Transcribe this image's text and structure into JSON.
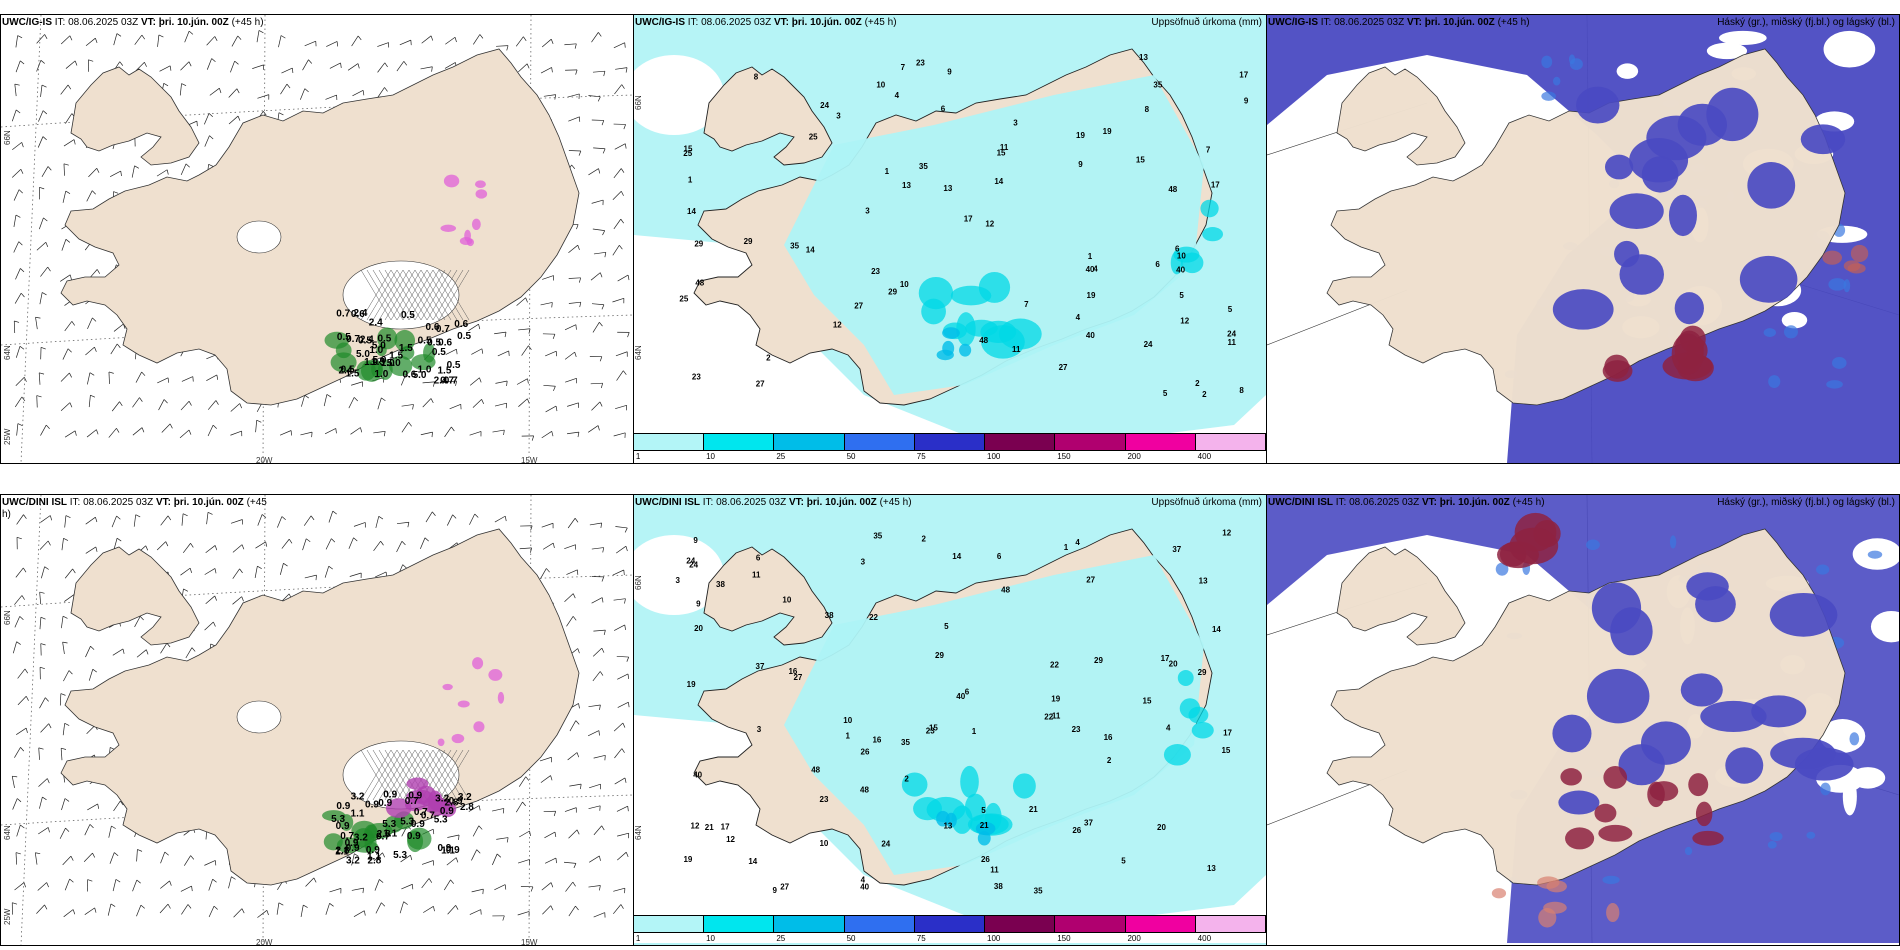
{
  "panels": [
    {
      "id": "top-left",
      "model": "UWC/IG-IS",
      "it_label": "IT:",
      "it_value": "08.06.2025 03Z",
      "vt_label": "VT:",
      "vt_value": "þri. 10.jún. 00Z",
      "lead": "(+45 h)",
      "right_title": "",
      "axis_labels": [
        "66N",
        "64N",
        "25W",
        "20W",
        "15W"
      ],
      "value_labels": [
        "1.5",
        "0.5",
        "0.6",
        "0.5",
        "0.7",
        "2.4",
        "5.0",
        "1.0"
      ]
    },
    {
      "id": "top-mid",
      "model": "UWC/IG-IS",
      "it_label": "IT:",
      "it_value": "08.06.2025 03Z",
      "vt_label": "VT:",
      "vt_value": "þri. 10.jún. 00Z",
      "lead": "(+45 h)",
      "right_title": "Uppsöfnuð úrkoma (mm)",
      "axis_labels": [
        "66N",
        "64N"
      ],
      "value_labels": [
        "3",
        "2",
        "1",
        "5",
        "4",
        "12",
        "9",
        "8",
        "7",
        "10",
        "15",
        "14",
        "24",
        "27",
        "40",
        "48",
        "19",
        "35",
        "23",
        "29",
        "25",
        "11",
        "6",
        "13",
        "17"
      ]
    },
    {
      "id": "top-right",
      "model": "UWC/IG-IS",
      "it_label": "IT:",
      "it_value": "08.06.2025 03Z",
      "vt_label": "VT:",
      "vt_value": "þri. 10.jún. 00Z",
      "lead": "(+45 h)",
      "right_title": "Háský (gr.), miðský (fj.bl.) og lágský (bl.)",
      "axis_labels": [],
      "value_labels": []
    },
    {
      "id": "bottom-left",
      "model": "UWC/DINI ISL",
      "it_label": "IT:",
      "it_value": "08.06.2025 03Z",
      "vt_label": "VT:",
      "vt_value": "þri. 10.jún. 00Z",
      "lead": "(+45 h)",
      "right_title": "",
      "axis_labels": [
        "66N",
        "64N",
        "25W",
        "20W",
        "15W"
      ],
      "value_labels": [
        "0.7",
        "0.9",
        "2.8",
        "0.9",
        "1.1",
        "0.9",
        "3.2",
        "5.3"
      ]
    },
    {
      "id": "bottom-mid",
      "model": "UWC/DINI ISL",
      "it_label": "IT:",
      "it_value": "08.06.2025 03Z",
      "vt_label": "VT:",
      "vt_value": "þri. 10.jún. 00Z",
      "lead": "(+45 h)",
      "right_title": "Uppsöfnuð úrkoma (mm)",
      "axis_labels": [
        "66N",
        "64N"
      ],
      "value_labels": [
        "2",
        "1",
        "4",
        "5",
        "3",
        "10",
        "16",
        "12",
        "14",
        "29",
        "13",
        "11",
        "15",
        "21",
        "27",
        "22",
        "37",
        "40",
        "35",
        "38",
        "26",
        "24",
        "19",
        "9",
        "20",
        "48",
        "17",
        "23",
        "6"
      ]
    },
    {
      "id": "bottom-right",
      "model": "UWC/DINI ISL",
      "it_label": "IT:",
      "it_value": "08.06.2025 03Z",
      "vt_label": "VT:",
      "vt_value": "þri. 10.jún. 00Z",
      "lead": "(+45 h)",
      "right_title": "Háský (gr.), miðský (fj.bl.) og lágský (bl.)",
      "axis_labels": [],
      "value_labels": []
    }
  ],
  "precip_legend": {
    "ticks": [
      "1",
      "10",
      "25",
      "50",
      "75",
      "100",
      "150",
      "200",
      "400"
    ],
    "colors": [
      "#b3f5f7",
      "#00e6ee",
      "#00bde8",
      "#2f6ff0",
      "#2a2fc8",
      "#7a0050",
      "#b0006f",
      "#f000a0",
      "#f4b3ec"
    ]
  },
  "colors": {
    "land": "#efe0cf",
    "sea_cyan": "#aef3f5",
    "cloud_mid": "#4a4ac2",
    "cloud_high": "#8e2241",
    "snow_pink": "#e060d8",
    "rain_green": "#1f8a2a"
  }
}
